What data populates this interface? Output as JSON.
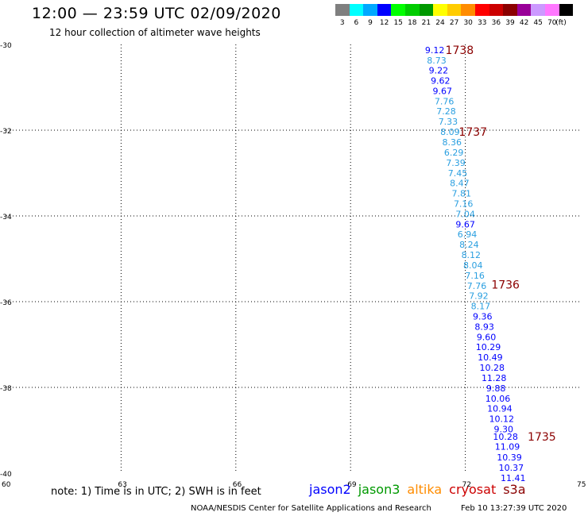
{
  "header": {
    "title": "12:00 — 23:59 UTC 02/09/2020",
    "subtitle": "12 hour collection of altimeter wave heights"
  },
  "color_scale": {
    "swatches": [
      {
        "color": "#7f7f7f",
        "label": "3"
      },
      {
        "color": "#00ffff",
        "label": "6"
      },
      {
        "color": "#00a8ff",
        "label": "9"
      },
      {
        "color": "#0000ff",
        "label": "12"
      },
      {
        "color": "#00ff00",
        "label": "15"
      },
      {
        "color": "#00cc00",
        "label": "18"
      },
      {
        "color": "#009900",
        "label": "21"
      },
      {
        "color": "#ffff00",
        "label": "24"
      },
      {
        "color": "#ffcc00",
        "label": "27"
      },
      {
        "color": "#ff8c00",
        "label": "30"
      },
      {
        "color": "#ff0000",
        "label": "33"
      },
      {
        "color": "#cc0000",
        "label": "36"
      },
      {
        "color": "#8b0000",
        "label": "39"
      },
      {
        "color": "#990099",
        "label": "42"
      },
      {
        "color": "#cc99ff",
        "label": "45"
      },
      {
        "color": "#ff77ff",
        "label": "70"
      },
      {
        "color": "#000000",
        "label": ""
      }
    ],
    "unit": "(ft)"
  },
  "chart_data": {
    "type": "scatter",
    "xlim": [
      60,
      75
    ],
    "ylim": [
      -40,
      -30
    ],
    "x_ticks": [
      {
        "value": 60,
        "label": "60"
      },
      {
        "value": 63,
        "label": "63"
      },
      {
        "value": 66,
        "label": "66"
      },
      {
        "value": 69,
        "label": "69"
      },
      {
        "value": 72,
        "label": "72"
      },
      {
        "value": 75,
        "label": "75"
      }
    ],
    "y_ticks": [
      {
        "value": -30,
        "label": "-30"
      },
      {
        "value": -32,
        "label": "-32"
      },
      {
        "value": -34,
        "label": "-34"
      },
      {
        "value": -36,
        "label": "-36"
      },
      {
        "value": -38,
        "label": "-38"
      },
      {
        "value": -40,
        "label": "-40"
      }
    ],
    "grid": true,
    "points": [
      {
        "lon": 71.2,
        "lat": -30.13,
        "value": "9.12"
      },
      {
        "lon": 71.25,
        "lat": -30.37,
        "value": "8.73"
      },
      {
        "lon": 71.3,
        "lat": -30.6,
        "value": "9.22"
      },
      {
        "lon": 71.35,
        "lat": -30.84,
        "value": "9.62"
      },
      {
        "lon": 71.4,
        "lat": -31.08,
        "value": "9.67"
      },
      {
        "lon": 71.45,
        "lat": -31.32,
        "value": "7.76"
      },
      {
        "lon": 71.5,
        "lat": -31.56,
        "value": "7.28"
      },
      {
        "lon": 71.55,
        "lat": -31.8,
        "value": "7.33"
      },
      {
        "lon": 71.6,
        "lat": -32.04,
        "value": "8.09"
      },
      {
        "lon": 71.65,
        "lat": -32.28,
        "value": "8.36"
      },
      {
        "lon": 71.7,
        "lat": -32.52,
        "value": "6.29"
      },
      {
        "lon": 71.75,
        "lat": -32.76,
        "value": "7.39"
      },
      {
        "lon": 71.8,
        "lat": -33.0,
        "value": "7.45"
      },
      {
        "lon": 71.85,
        "lat": -33.23,
        "value": "8.47"
      },
      {
        "lon": 71.9,
        "lat": -33.47,
        "value": "7.81"
      },
      {
        "lon": 71.95,
        "lat": -33.71,
        "value": "7.16"
      },
      {
        "lon": 72.0,
        "lat": -33.95,
        "value": "7.04"
      },
      {
        "lon": 72.0,
        "lat": -34.19,
        "value": "9.67"
      },
      {
        "lon": 72.05,
        "lat": -34.43,
        "value": "6.94"
      },
      {
        "lon": 72.1,
        "lat": -34.67,
        "value": "8.24"
      },
      {
        "lon": 72.15,
        "lat": -34.91,
        "value": "8.12"
      },
      {
        "lon": 72.2,
        "lat": -35.15,
        "value": "8.04"
      },
      {
        "lon": 72.25,
        "lat": -35.39,
        "value": "7.16"
      },
      {
        "lon": 72.3,
        "lat": -35.63,
        "value": "7.76"
      },
      {
        "lon": 72.35,
        "lat": -35.86,
        "value": "7.92"
      },
      {
        "lon": 72.4,
        "lat": -36.1,
        "value": "8.17"
      },
      {
        "lon": 72.45,
        "lat": -36.34,
        "value": "9.36"
      },
      {
        "lon": 72.5,
        "lat": -36.58,
        "value": "8.93"
      },
      {
        "lon": 72.55,
        "lat": -36.82,
        "value": "9.60"
      },
      {
        "lon": 72.6,
        "lat": -37.06,
        "value": "10.29"
      },
      {
        "lon": 72.65,
        "lat": -37.3,
        "value": "10.49"
      },
      {
        "lon": 72.7,
        "lat": -37.54,
        "value": "10.28"
      },
      {
        "lon": 72.75,
        "lat": -37.78,
        "value": "11.28"
      },
      {
        "lon": 72.8,
        "lat": -38.02,
        "value": "9.88"
      },
      {
        "lon": 72.85,
        "lat": -38.26,
        "value": "10.06"
      },
      {
        "lon": 72.9,
        "lat": -38.49,
        "value": "10.94"
      },
      {
        "lon": 72.95,
        "lat": -38.73,
        "value": "10.12"
      },
      {
        "lon": 73.0,
        "lat": -38.97,
        "value": "9.30"
      },
      {
        "lon": 73.05,
        "lat": -39.15,
        "value": "10.28"
      },
      {
        "lon": 73.1,
        "lat": -39.38,
        "value": "11.09"
      },
      {
        "lon": 73.15,
        "lat": -39.63,
        "value": "10.39"
      },
      {
        "lon": 73.2,
        "lat": -39.87,
        "value": "10.37"
      },
      {
        "lon": 73.25,
        "lat": -40.11,
        "value": "11.41"
      }
    ],
    "time_labels": [
      {
        "lon": 71.85,
        "lat": -30.13,
        "value": "1738"
      },
      {
        "lon": 72.2,
        "lat": -32.04,
        "value": "1737"
      },
      {
        "lon": 73.05,
        "lat": -35.6,
        "value": "1736"
      },
      {
        "lon": 74.0,
        "lat": -39.15,
        "value": "1735"
      }
    ],
    "point_color": "#2a9fe0",
    "highlight_color": "#0000ff",
    "time_label_color": "#8b0000"
  },
  "footer": {
    "note": "note:  1) Time is in UTC;  2) SWH is in feet",
    "credit": "NOAA/NESDIS Center for Satellite Applications and Research",
    "timestamp": "Feb 10 13:27:39 UTC 2020"
  },
  "legend": {
    "items": [
      {
        "label": "jason2",
        "color": "#0000ff"
      },
      {
        "label": "jason3",
        "color": "#009900"
      },
      {
        "label": "altika",
        "color": "#ff8c00"
      },
      {
        "label": "cryosat",
        "color": "#cc0000"
      },
      {
        "label": "s3a",
        "color": "#8b0000"
      }
    ]
  }
}
